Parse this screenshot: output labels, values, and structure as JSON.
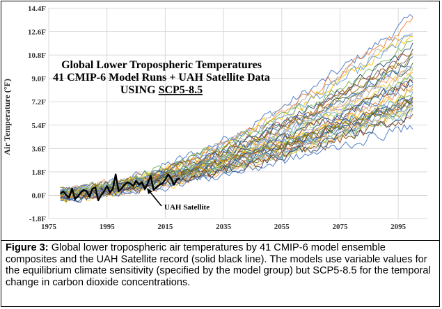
{
  "chart_data": {
    "type": "line",
    "title_lines": [
      "Global Lower Tropospheric Temperatures",
      "41 CMIP-6 Model Runs + UAH Satellite Data"
    ],
    "title_line3_prefix": "USING ",
    "title_line3_underlined": "SCP5-8.5",
    "xlabel": "",
    "ylabel": "Air Temperature (°F)",
    "xlim": [
      1975,
      2105
    ],
    "ylim": [
      -1.8,
      14.4
    ],
    "x_ticks": [
      1975,
      1995,
      2015,
      2035,
      2055,
      2075,
      2095
    ],
    "x_tick_labels": [
      "1975",
      "1995",
      "2015",
      "2035",
      "2055",
      "2075",
      "2095"
    ],
    "y_ticks": [
      -1.8,
      0.0,
      1.8,
      3.6,
      5.4,
      7.2,
      9.0,
      10.8,
      12.6,
      14.4
    ],
    "y_tick_labels": [
      "-1.8F",
      "0.0F",
      "1.8F",
      "3.6F",
      "5.4F",
      "7.2F",
      "9.0F",
      "10.8F",
      "12.6F",
      "14.4F"
    ],
    "grid": true,
    "model_runs": {
      "count": 41,
      "start_year": 1979,
      "end_year": 2100,
      "end_values": [
        13.7,
        13.3,
        13.0,
        12.6,
        12.4,
        11.8,
        11.4,
        11.1,
        10.9,
        10.6,
        10.4,
        10.2,
        10.0,
        9.8,
        9.6,
        9.4,
        9.2,
        9.0,
        8.9,
        8.7,
        8.5,
        8.4,
        8.2,
        8.1,
        7.9,
        7.8,
        7.6,
        7.5,
        7.4,
        7.3,
        7.2,
        7.1,
        7.0,
        6.9,
        6.8,
        6.7,
        6.6,
        6.5,
        6.3,
        6.1,
        5.4
      ],
      "colors": [
        "#4472c4",
        "#ed7d31",
        "#a5a5a5",
        "#ffc000",
        "#5b9bd5",
        "#70ad47",
        "#264478",
        "#9e480e",
        "#636363",
        "#997300",
        "#255e91",
        "#43682b",
        "#698ed0",
        "#f1975a",
        "#b7b7b7",
        "#ffcd33",
        "#7cafdd",
        "#8cc168",
        "#1f3864",
        "#843c0c"
      ]
    },
    "series": [
      {
        "name": "UAH Satellite",
        "color": "#000000",
        "x": [
          1979,
          1980,
          1981,
          1982,
          1983,
          1984,
          1985,
          1986,
          1987,
          1988,
          1989,
          1990,
          1991,
          1992,
          1993,
          1994,
          1995,
          1996,
          1997,
          1998,
          1999,
          2000,
          2001,
          2002,
          2003,
          2004,
          2005,
          2006,
          2007,
          2008,
          2009,
          2010,
          2011,
          2012,
          2013,
          2014,
          2015,
          2016,
          2017,
          2018,
          2019,
          2020
        ],
        "values": [
          0.1,
          0.3,
          0.0,
          -0.2,
          0.5,
          -0.3,
          -0.1,
          0.2,
          0.4,
          0.3,
          -0.1,
          0.5,
          0.6,
          -0.4,
          0.0,
          0.3,
          0.7,
          0.2,
          0.5,
          1.6,
          0.3,
          0.5,
          0.8,
          1.0,
          0.9,
          0.7,
          1.1,
          0.8,
          1.0,
          0.5,
          0.9,
          1.5,
          0.4,
          0.6,
          0.8,
          0.9,
          1.2,
          1.6,
          1.3,
          0.8,
          1.2,
          1.3
        ]
      }
    ],
    "annotation": {
      "text": "UAH Satellite",
      "x": 2019,
      "y": -0.9
    }
  },
  "caption": {
    "label": "Figure 3:",
    "text": "Global lower tropospheric air temperatures by 41 CMIP-6 model ensemble composites and the UAH Satellite record (solid black line).  The models use variable values for the equilibrium climate sensitivity (specified by the model group) but SCP5-8.5 for the temporal change in carbon dioxide concentrations."
  }
}
